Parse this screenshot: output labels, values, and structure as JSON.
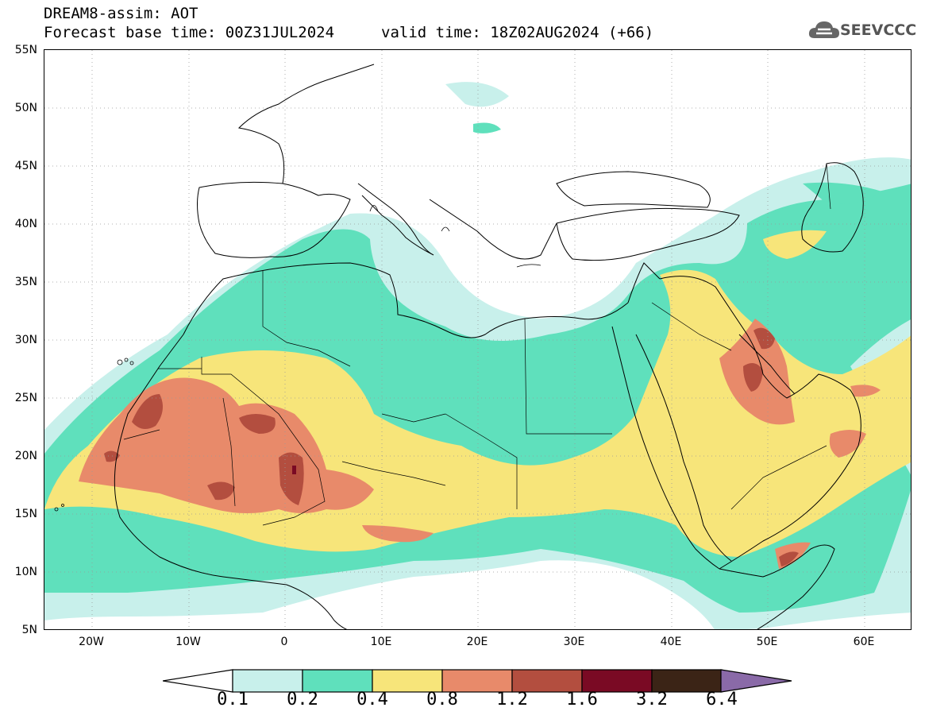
{
  "title": {
    "line1": "DREAM8-assim: AOT",
    "line2": "Forecast base time: 00Z31JUL2024",
    "valid": "valid time: 18Z02AUG2024 (+66)"
  },
  "logo": {
    "text": "SEEVCCC"
  },
  "axes": {
    "lat_labels": [
      "55N",
      "50N",
      "45N",
      "40N",
      "35N",
      "30N",
      "25N",
      "20N",
      "15N",
      "10N",
      "5N"
    ],
    "lon_labels": [
      "20W",
      "10W",
      "0",
      "10E",
      "20E",
      "30E",
      "40E",
      "50E",
      "60E"
    ]
  },
  "legend": {
    "labels": [
      "0.1",
      "0.2",
      "0.4",
      "0.8",
      "1.2",
      "1.6",
      "3.2",
      "6.4"
    ],
    "colors": [
      "#c8f0eb",
      "#5fe0bc",
      "#f7e57a",
      "#e88a6a",
      "#b34e3f",
      "#7a0a24",
      "#3b2416",
      "#8a6aa8"
    ]
  },
  "colors": {
    "level1": "#c8f0eb",
    "level2": "#5fe0bc",
    "level3": "#f7e57a",
    "level4": "#e88a6a",
    "level5": "#b34e3f",
    "level6": "#7a0a24"
  }
}
